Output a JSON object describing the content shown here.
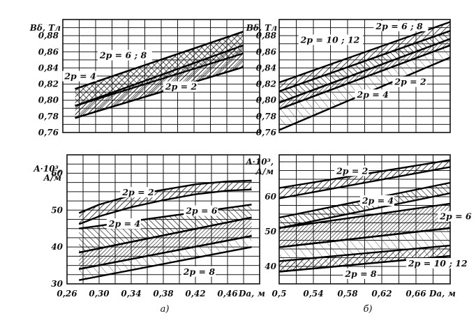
{
  "captions": {
    "left": "a)",
    "right": "б)"
  },
  "chart_data": [
    {
      "id": "top-left",
      "type": "area",
      "ylabel": "Bδ, Тл",
      "xlabel": "",
      "xlim": [
        0.26,
        0.5
      ],
      "ylim": [
        0.76,
        0.9
      ],
      "yticks": [
        "0,76",
        "0,78",
        "0,80",
        "0,82",
        "0,84",
        "0,86",
        "0,88"
      ],
      "xticks": [],
      "grid": true,
      "series": [
        {
          "name": "2p = 4",
          "x": [
            0.275,
            0.48
          ],
          "lower": [
            0.778,
            0.841
          ],
          "upper": [
            0.814,
            0.885
          ]
        },
        {
          "name": "2p = 6 ; 8",
          "x": [
            0.275,
            0.48
          ],
          "lower": [
            0.793,
            0.858
          ],
          "upper": [
            0.814,
            0.885
          ]
        },
        {
          "name": "2p = 2",
          "x": [
            0.275,
            0.48
          ],
          "lower": [
            0.778,
            0.841
          ],
          "upper": [
            0.793,
            0.868
          ]
        }
      ],
      "labels": [
        {
          "text": "2p = 6 ; 8",
          "ax": 0.305,
          "ay": 0.852
        },
        {
          "text": "2p = 4",
          "ax": 0.262,
          "ay": 0.826
        },
        {
          "text": "2p = 2",
          "ax": 0.385,
          "ay": 0.813
        }
      ]
    },
    {
      "id": "top-right",
      "type": "area",
      "ylabel": "Bδ, Тл",
      "xlabel": "",
      "xlim": [
        0.5,
        0.7
      ],
      "ylim": [
        0.76,
        0.9
      ],
      "yticks": [
        "0,76",
        "0,78",
        "0,80",
        "0,82",
        "0,84",
        "0,86",
        "0,88"
      ],
      "xticks": [],
      "grid": true,
      "series": [
        {
          "name": "2p = 6 ; 8",
          "x": [
            0.5,
            0.7
          ],
          "lower": [
            0.811,
            0.886
          ],
          "upper": [
            0.822,
            0.897
          ]
        },
        {
          "name": "2p = 10 ; 12",
          "x": [
            0.5,
            0.7
          ],
          "lower": [
            0.797,
            0.876
          ],
          "upper": [
            0.811,
            0.886
          ]
        },
        {
          "name": "2p = 2",
          "x": [
            0.5,
            0.7
          ],
          "lower": [
            0.789,
            0.868
          ],
          "upper": [
            0.797,
            0.876
          ]
        },
        {
          "name": "2p = 4",
          "x": [
            0.5,
            0.7
          ],
          "lower": [
            0.763,
            0.853
          ],
          "upper": [
            0.789,
            0.868
          ]
        }
      ],
      "labels": [
        {
          "text": "2p = 6 ; 8",
          "ax": 0.613,
          "ay": 0.888
        },
        {
          "text": "2p = 10 ; 12",
          "ax": 0.525,
          "ay": 0.871
        },
        {
          "text": "2p = 2",
          "ax": 0.635,
          "ay": 0.819
        },
        {
          "text": "2p = 4",
          "ax": 0.591,
          "ay": 0.803
        }
      ]
    },
    {
      "id": "bottom-left",
      "type": "area",
      "ylabel": "A·10³, А/м",
      "xlabel": "Da, м",
      "xlim": [
        0.26,
        0.5
      ],
      "ylim": [
        30,
        65
      ],
      "yticks": [
        "30",
        "40",
        "50",
        "60"
      ],
      "xticks": [
        "0,26",
        "0,30",
        "0,34",
        "0,38",
        "0,42",
        "0,46"
      ],
      "grid": true,
      "series": [
        {
          "name": "2p = 2",
          "x": [
            0.275,
            0.3,
            0.34,
            0.38,
            0.42,
            0.46,
            0.49
          ],
          "lower": [
            46.2,
            48.3,
            50.8,
            52.7,
            54.3,
            55.3,
            55.6
          ],
          "upper": [
            49.2,
            51.5,
            54.0,
            55.5,
            57.0,
            57.8,
            58.0
          ]
        },
        {
          "name": "2p = 4",
          "x": [
            0.275,
            0.49
          ],
          "lower": [
            38.5,
            48.0
          ],
          "upper": [
            45.0,
            51.5
          ]
        },
        {
          "name": "2p = 6",
          "x": [
            0.275,
            0.49
          ],
          "lower": [
            34.0,
            43.0
          ],
          "upper": [
            38.5,
            48.0
          ]
        },
        {
          "name": "2p = 8",
          "x": [
            0.275,
            0.49
          ],
          "lower": [
            31.0,
            40.0
          ],
          "upper": [
            34.0,
            43.0
          ]
        }
      ],
      "labels": [
        {
          "text": "2p = 2",
          "ax": 0.329,
          "ay": 54.0
        },
        {
          "text": "2p = 4",
          "ax": 0.312,
          "ay": 45.5
        },
        {
          "text": "2p = 6",
          "ax": 0.408,
          "ay": 49.0
        },
        {
          "text": "2p = 8",
          "ax": 0.405,
          "ay": 32.5
        }
      ]
    },
    {
      "id": "bottom-right",
      "type": "area",
      "ylabel": "A·10³, А/м",
      "xlabel": "Da, м",
      "xlim": [
        0.5,
        0.7
      ],
      "ylim": [
        35,
        72
      ],
      "yticks": [
        "40",
        "50",
        "60"
      ],
      "xticks": [
        "0,5",
        "0,54",
        "0,58",
        "0,62",
        "0,66"
      ],
      "grid": true,
      "series": [
        {
          "name": "2p = 2",
          "x": [
            0.5,
            0.7
          ],
          "lower": [
            59.5,
            68.5
          ],
          "upper": [
            62.5,
            70.5
          ]
        },
        {
          "name": "2p = 4",
          "x": [
            0.5,
            0.7
          ],
          "lower": [
            51.0,
            61.0
          ],
          "upper": [
            54.0,
            64.0
          ]
        },
        {
          "name": "2p = 6",
          "x": [
            0.5,
            0.7
          ],
          "lower": [
            45.5,
            51.0
          ],
          "upper": [
            51.0,
            58.0
          ]
        },
        {
          "name": "2p = 8",
          "x": [
            0.5,
            0.7
          ],
          "lower": [
            38.5,
            43.0
          ],
          "upper": [
            45.5,
            51.0
          ]
        },
        {
          "name": "2p = 10 ; 12",
          "x": [
            0.5,
            0.7
          ],
          "lower": [
            38.5,
            43.0
          ],
          "upper": [
            41.5,
            46.0
          ]
        }
      ],
      "labels": [
        {
          "text": "2p = 2",
          "ax": 0.567,
          "ay": 66.5
        },
        {
          "text": "2p = 4",
          "ax": 0.597,
          "ay": 58.0
        },
        {
          "text": "2p = 6",
          "ax": 0.688,
          "ay": 53.5
        },
        {
          "text": "2p = 10 ; 12",
          "ax": 0.651,
          "ay": 40.0
        },
        {
          "text": "2p = 8",
          "ax": 0.577,
          "ay": 37.0
        }
      ]
    }
  ]
}
